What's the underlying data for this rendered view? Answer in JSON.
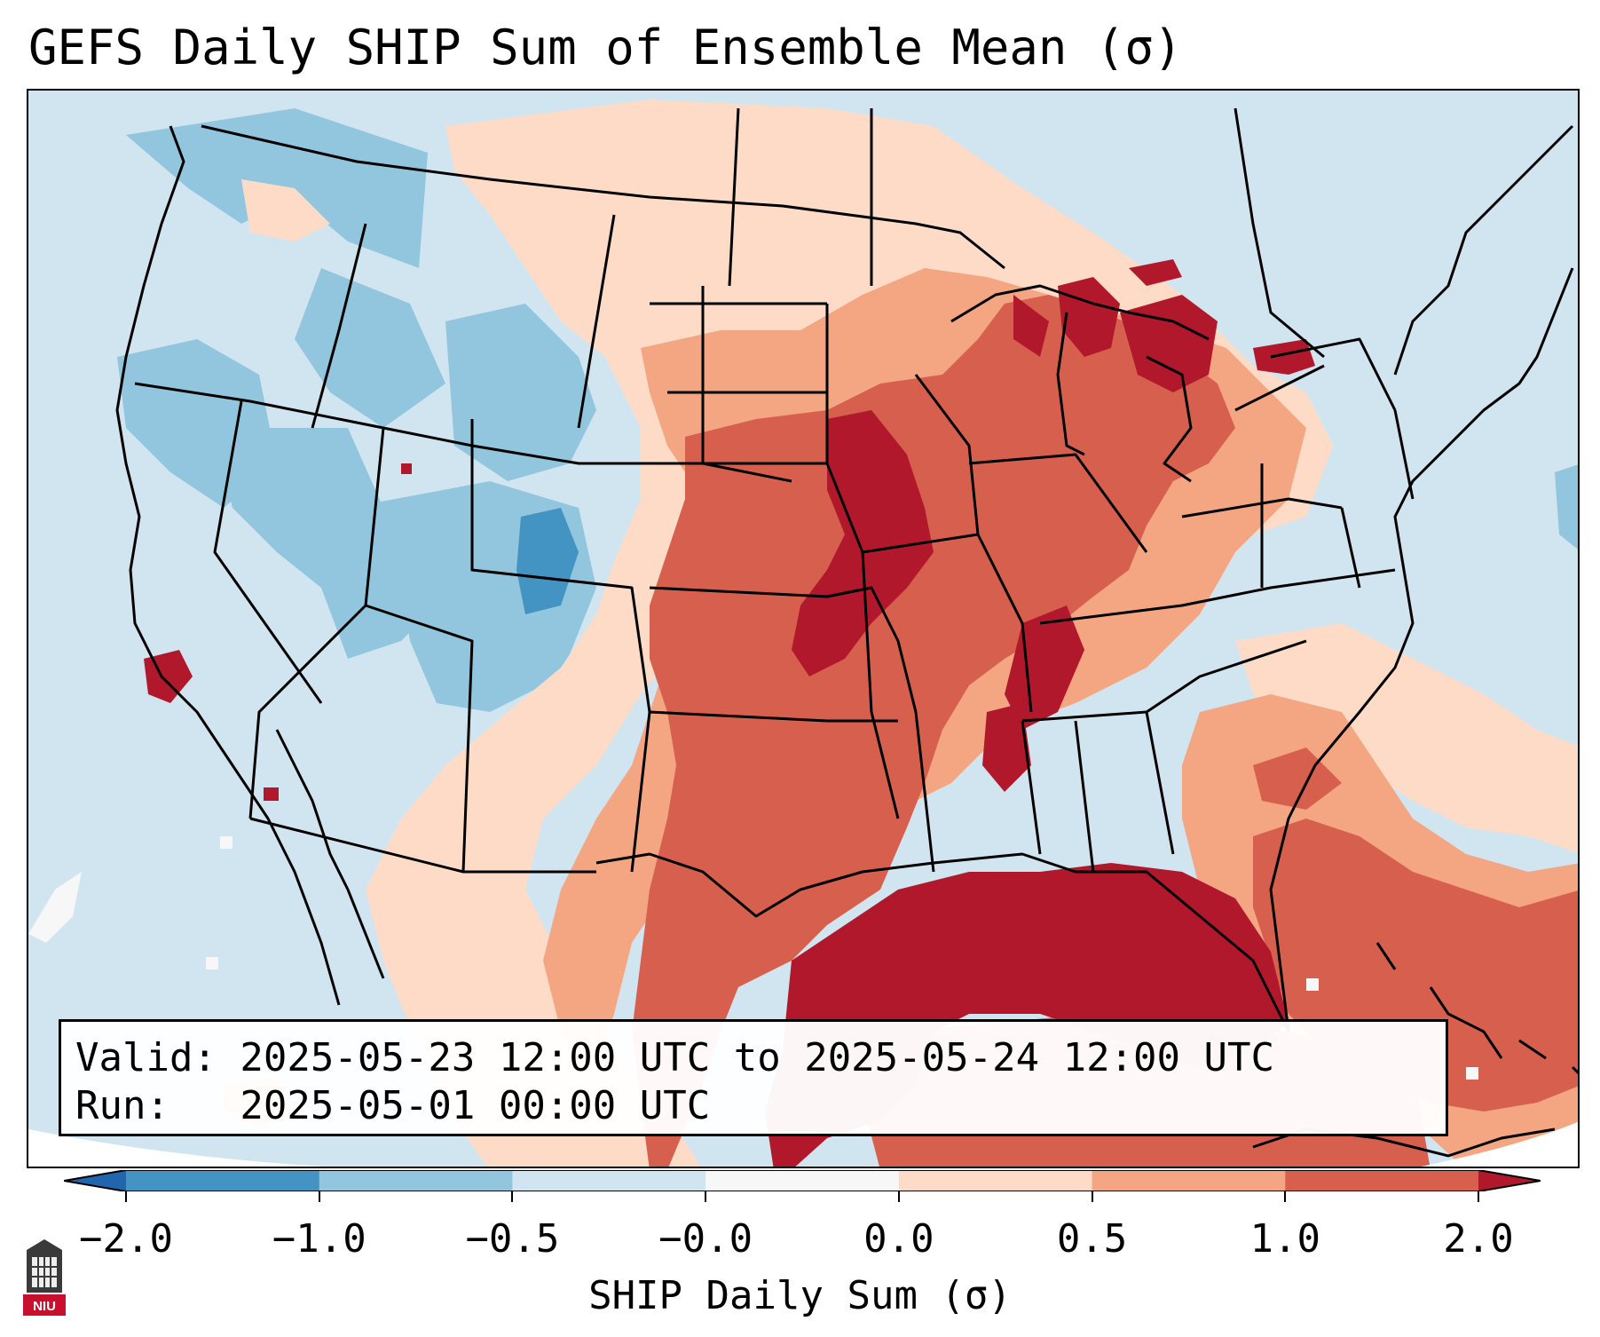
{
  "title": "GEFS Daily SHIP Sum of Ensemble Mean (σ)",
  "valid_line": "Valid: 2025-05-23 12:00 UTC to 2025-05-24 12:00 UTC",
  "run_line": "Run:   2025-05-01 00:00 UTC",
  "colorbar": {
    "label": "SHIP Daily Sum (σ)",
    "ticks": [
      "−2.0",
      "−1.0",
      "−0.5",
      "−0.0",
      "0.0",
      "0.5",
      "1.0",
      "2.0"
    ],
    "colors": [
      "#2166ac",
      "#4393c3",
      "#92c5de",
      "#d1e5f0",
      "#f7f7f7",
      "#fddbc7",
      "#f4a582",
      "#d6604d",
      "#b2182b"
    ]
  },
  "logo": {
    "text": "NIU",
    "icon": "niu-logo"
  }
}
